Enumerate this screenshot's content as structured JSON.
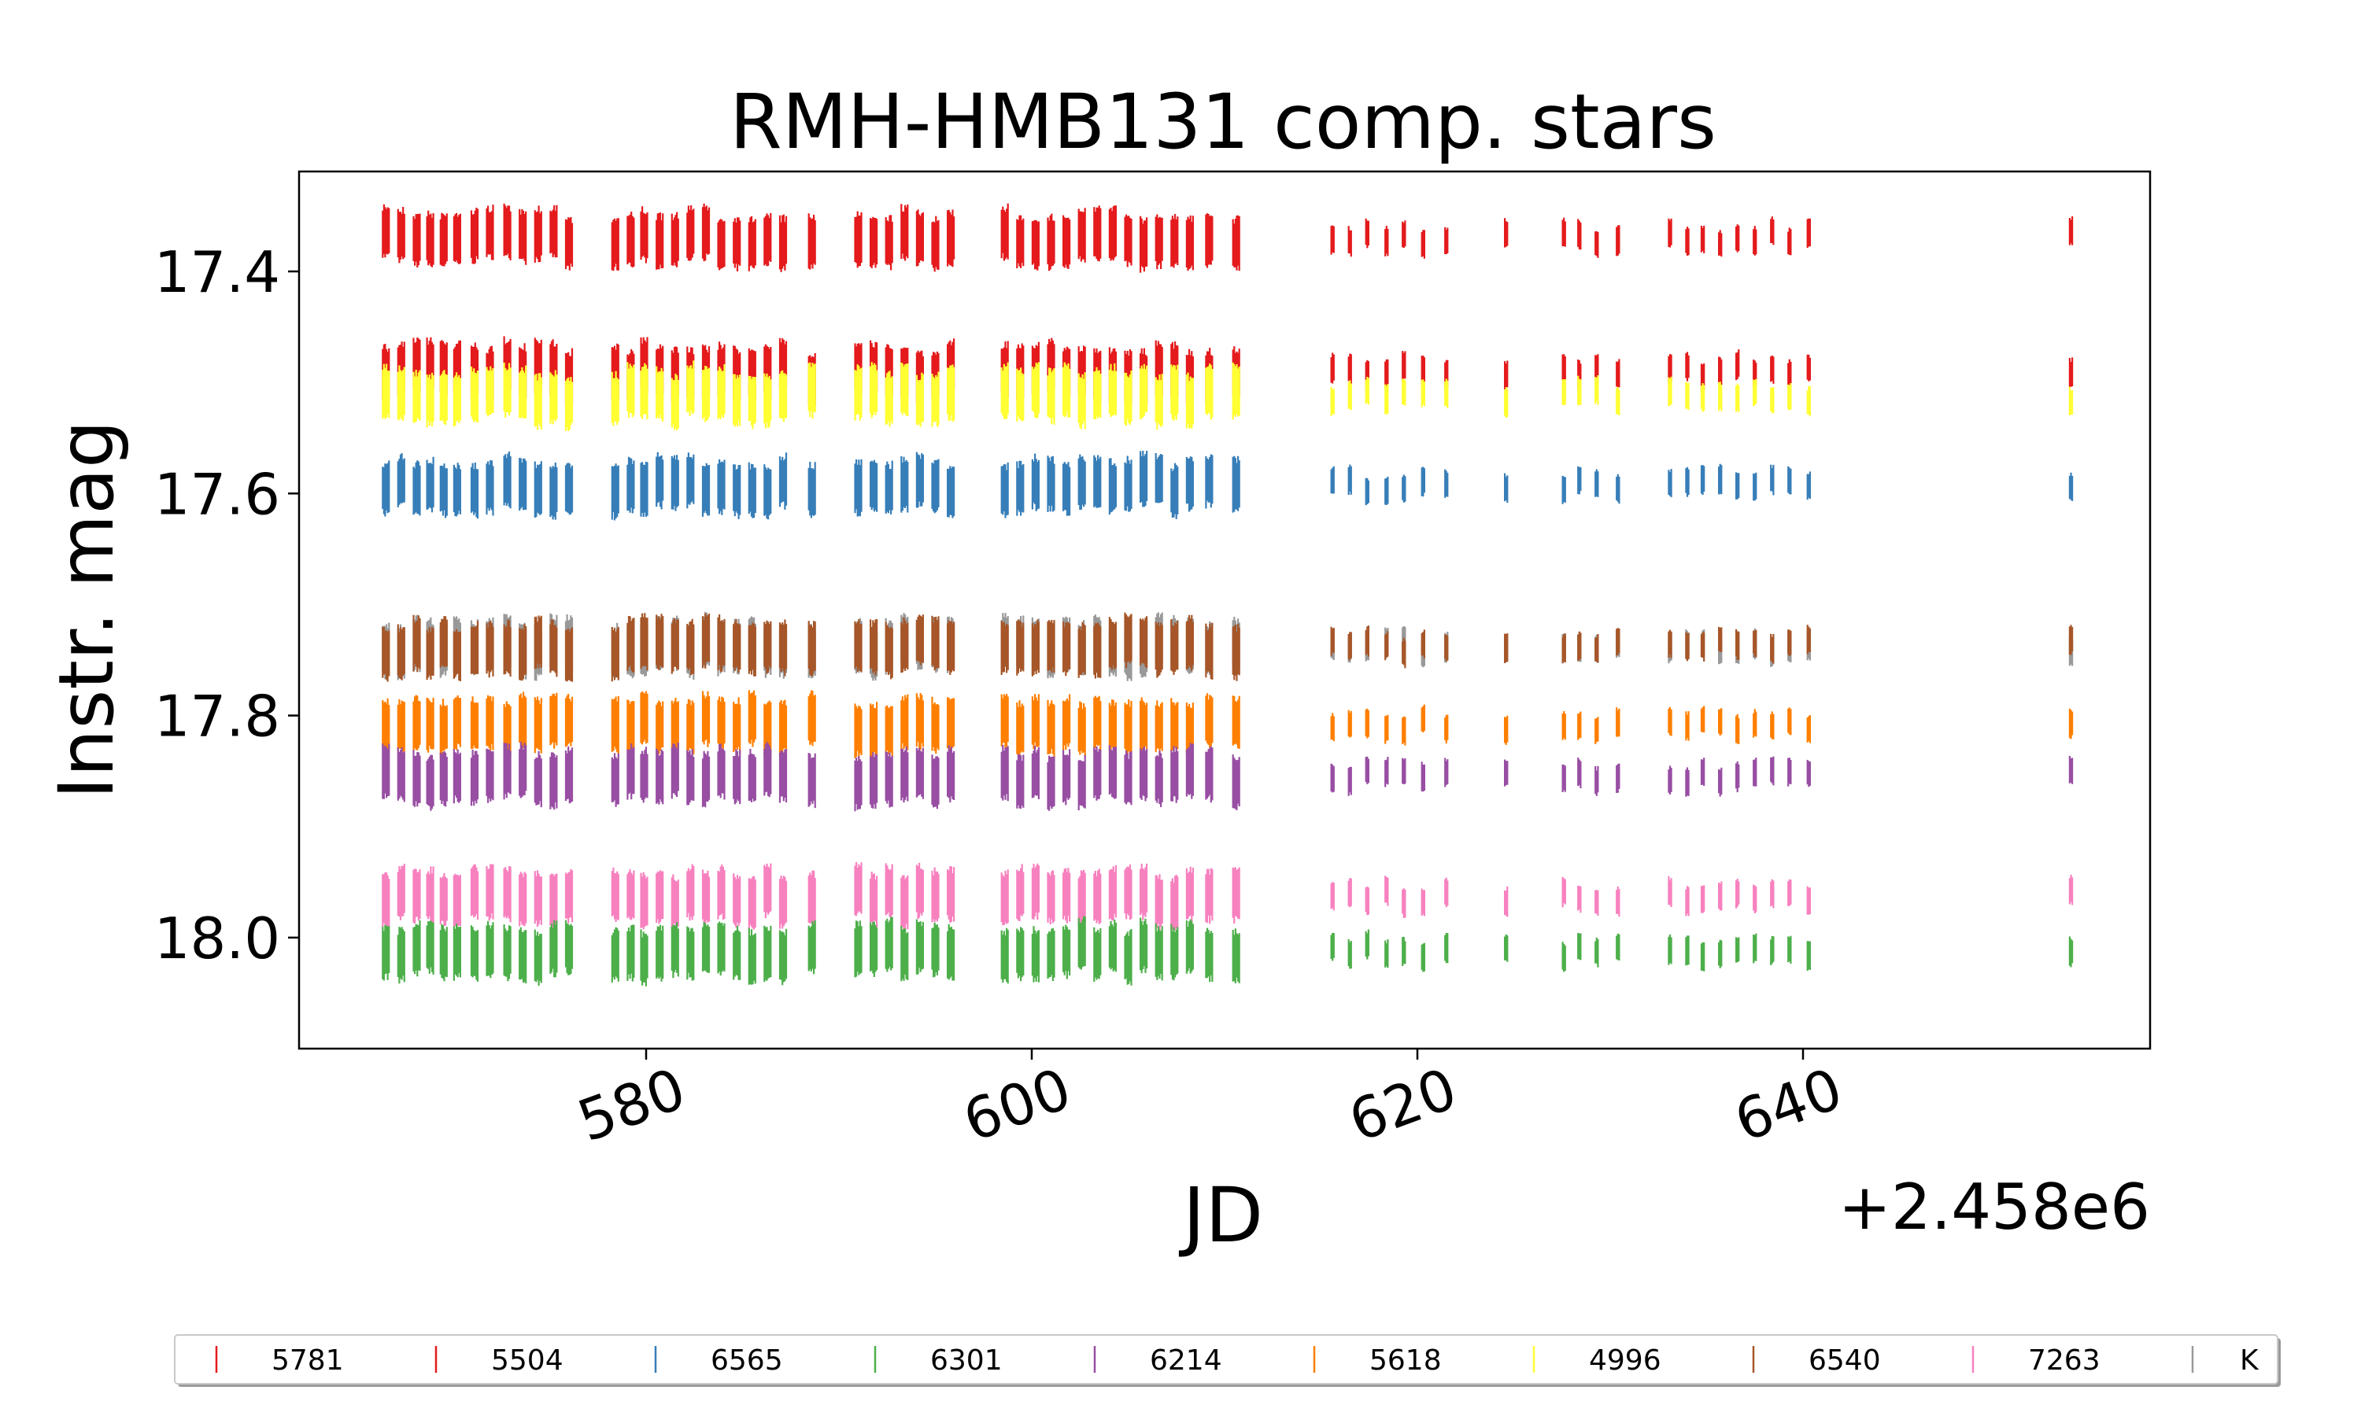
{
  "chart_data": {
    "type": "scatter",
    "title": "RMH-HMB131 comp. stars",
    "xlabel": "JD",
    "ylabel": "Instr. mag",
    "x_offset_label": "+2.458e6",
    "xlim": [
      562,
      658
    ],
    "ylim": [
      18.1,
      17.31
    ],
    "y_inverted": true,
    "x_ticks": [
      580,
      600,
      620,
      640
    ],
    "x_tick_labels": [
      "580",
      "600",
      "620",
      "640"
    ],
    "y_ticks": [
      17.4,
      17.6,
      17.8,
      18.0
    ],
    "y_tick_labels": [
      "17.4",
      "17.6",
      "17.8",
      "18.0"
    ],
    "grid": false,
    "legend_position": "bottom",
    "marker": "vertical bar",
    "observation_nights": [
      566.5,
      567.3,
      568.1,
      568.8,
      569.5,
      570.2,
      571.1,
      571.9,
      572.8,
      573.6,
      574.4,
      575.2,
      576.0,
      578.4,
      579.2,
      579.9,
      580.7,
      581.5,
      582.3,
      583.1,
      583.9,
      584.7,
      585.5,
      586.3,
      587.1,
      588.6,
      591.0,
      591.8,
      592.6,
      593.4,
      594.2,
      595.0,
      595.8,
      598.6,
      599.4,
      600.2,
      601.0,
      601.8,
      602.6,
      603.4,
      604.2,
      605.0,
      605.8,
      606.6,
      607.4,
      608.2,
      609.2,
      610.6,
      615.6,
      616.5,
      617.4,
      618.4,
      619.3,
      620.3,
      621.5,
      624.6,
      627.6,
      628.4,
      629.3,
      630.4,
      633.1,
      634.0,
      634.8,
      635.7,
      636.6,
      637.5,
      638.4,
      639.3,
      640.3,
      653.9
    ],
    "series": [
      {
        "name": "5781",
        "color": "#e41a1c",
        "mean_mag": 17.37
      },
      {
        "name": "5504",
        "color": "#e41a1c",
        "mean_mag": 17.49
      },
      {
        "name": "6565",
        "color": "#377eb8",
        "mean_mag": 17.593
      },
      {
        "name": "6301",
        "color": "#4daf4a",
        "mean_mag": 18.012
      },
      {
        "name": "6214",
        "color": "#984ea3",
        "mean_mag": 17.855
      },
      {
        "name": "5618",
        "color": "#ff7f00",
        "mean_mag": 17.808
      },
      {
        "name": "4996",
        "color": "#ffff33",
        "mean_mag": 17.512
      },
      {
        "name": "6540",
        "color": "#a65628",
        "mean_mag": 17.738
      },
      {
        "name": "7263",
        "color": "#f781bf",
        "mean_mag": 17.963
      },
      {
        "name": "K",
        "color": "#999999",
        "mean_mag": 17.738
      }
    ]
  }
}
